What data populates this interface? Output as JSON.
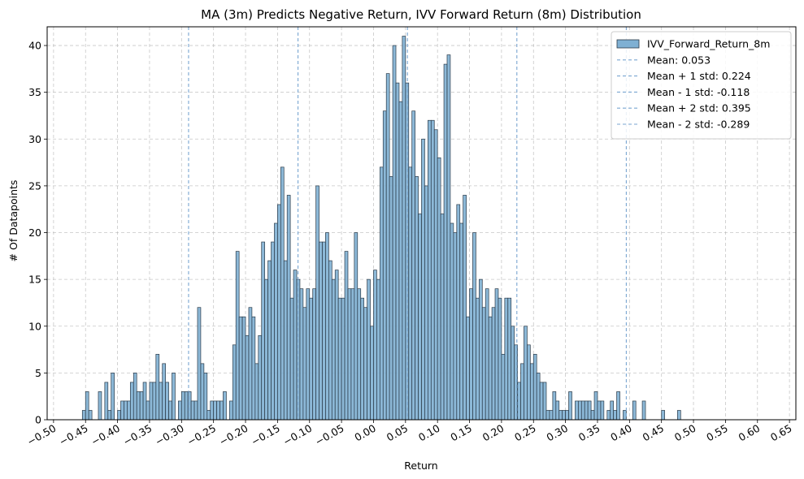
{
  "chart_data": {
    "type": "bar",
    "title": "MA (3m) Predicts Negative Return, IVV Forward Return (8m) Distribution",
    "xlabel": "Return",
    "ylabel": "# Of Datapoints",
    "xlim": [
      -0.51,
      0.66
    ],
    "ylim": [
      0,
      42
    ],
    "x_ticks": [
      -0.5,
      -0.45,
      -0.4,
      -0.35,
      -0.3,
      -0.25,
      -0.2,
      -0.15,
      -0.1,
      -0.05,
      0.0,
      0.05,
      0.1,
      0.15,
      0.2,
      0.25,
      0.3,
      0.35,
      0.4,
      0.45,
      0.5,
      0.55,
      0.6,
      0.65
    ],
    "x_tick_labels": [
      "−0.50",
      "−0.45",
      "−0.40",
      "−0.35",
      "−0.30",
      "−0.25",
      "−0.20",
      "−0.15",
      "−0.10",
      "−0.05",
      "0.00",
      "0.05",
      "0.10",
      "0.15",
      "0.20",
      "0.25",
      "0.30",
      "0.35",
      "0.40",
      "0.45",
      "0.50",
      "0.55",
      "0.60",
      "0.65"
    ],
    "y_ticks": [
      0,
      5,
      10,
      15,
      20,
      25,
      30,
      35,
      40
    ],
    "y_tick_labels": [
      "0",
      "5",
      "10",
      "15",
      "20",
      "25",
      "30",
      "35",
      "40"
    ],
    "grid": true,
    "legend_position": "top-right",
    "hist": {
      "name": "IVV_Forward_Return_8m",
      "color": "#7fb0d3",
      "edge_color": "#2b3a48",
      "bin_start": -0.455,
      "bin_width": 0.005,
      "counts": [
        1,
        3,
        1,
        0,
        0,
        3,
        0,
        4,
        1,
        5,
        0,
        1,
        2,
        2,
        2,
        4,
        5,
        3,
        3,
        4,
        2,
        4,
        4,
        7,
        4,
        6,
        4,
        2,
        5,
        0,
        2,
        3,
        3,
        3,
        2,
        2,
        12,
        6,
        5,
        1,
        2,
        2,
        2,
        2,
        3,
        0,
        2,
        8,
        18,
        11,
        11,
        9,
        12,
        11,
        6,
        9,
        19,
        15,
        17,
        19,
        21,
        23,
        27,
        17,
        24,
        13,
        16,
        15,
        14,
        12,
        14,
        13,
        14,
        25,
        19,
        19,
        20,
        17,
        15,
        16,
        13,
        13,
        18,
        14,
        14,
        20,
        14,
        13,
        12,
        15,
        10,
        16,
        15,
        27,
        33,
        37,
        26,
        40,
        36,
        34,
        41,
        36,
        27,
        33,
        26,
        22,
        30,
        25,
        32,
        32,
        31,
        28,
        22,
        38,
        39,
        21,
        20,
        23,
        21,
        24,
        11,
        14,
        20,
        13,
        15,
        12,
        14,
        11,
        12,
        14,
        13,
        7,
        13,
        13,
        10,
        8,
        4,
        6,
        10,
        8,
        6,
        7,
        5,
        4,
        4,
        1,
        1,
        3,
        2,
        1,
        1,
        1,
        3,
        0,
        2,
        2,
        2,
        2,
        2,
        1,
        3,
        2,
        2,
        0,
        1,
        2,
        1,
        3,
        0,
        1,
        0,
        0,
        2,
        0,
        0,
        2,
        0,
        0,
        0,
        0,
        0,
        1,
        0,
        0,
        0,
        0,
        1
      ]
    },
    "vlines": [
      {
        "label": "Mean: 0.053",
        "x": 0.053,
        "color": "#7aa6d1"
      },
      {
        "label": "Mean + 1 std: 0.224",
        "x": 0.224,
        "color": "#7aa6d1"
      },
      {
        "label": "Mean - 1 std: -0.118",
        "x": -0.118,
        "color": "#7aa6d1"
      },
      {
        "label": "Mean + 2 std: 0.395",
        "x": 0.395,
        "color": "#7aa6d1"
      },
      {
        "label": "Mean - 2 std: -0.289",
        "x": -0.289,
        "color": "#7aa6d1"
      }
    ]
  }
}
